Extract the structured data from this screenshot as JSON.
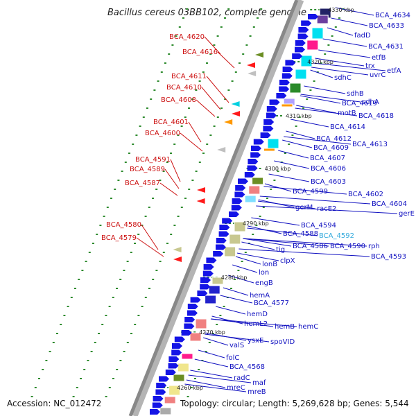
{
  "title": "Bacillus cereus 03BB102, complete genome",
  "accession": "Accession: NC_012472",
  "summary": "Topology: circular; Length: 5,269,628 bp; Genes: 5,544",
  "colors": {
    "forward_label": "#1010c0",
    "reverse_label": "#cc1111",
    "highlight_label": "#33aadd",
    "backbone": "#888888"
  },
  "kbp_labels": [
    "4330 kbp",
    "4320 kbp",
    "4310 kbp",
    "4300 kbp",
    "4290 kbp",
    "4280 kbp",
    "4270 kbp",
    "4260 kbp"
  ],
  "reverse_genes": [
    "BCA_4620",
    "BCA_4616",
    "BCA_4611",
    "BCA_4610",
    "BCA_4608",
    "BCA_4601",
    "BCA_4600",
    "BCA_4591",
    "BCA_4589",
    "BCA_4587",
    "BCA_4580",
    "BCA_4579"
  ],
  "forward_genes": [
    "BCA_4634",
    "BCA_4633",
    "fadD",
    "BCA_4631",
    "etfB",
    "trx",
    "uvrC",
    "etfA",
    "sdhC",
    "sdhB",
    "sdhA",
    "BCA_4619",
    "motB",
    "BCA_4618",
    "BCA_4614",
    "BCA_4612",
    "BCA_4613",
    "BCA_4609",
    "BCA_4607",
    "BCA_4606",
    "BCA_4603",
    "BCA_4599",
    "BCA_4602",
    "BCA_4604",
    "gerM",
    "racE2",
    "gerE",
    "BCA_4594",
    "BCA_4588",
    "BCA_4592",
    "BCA_4586",
    "BCA_4590",
    "rph",
    "tig",
    "BCA_4593",
    "clpX",
    "lonB",
    "lon",
    "engB",
    "hemA",
    "BCA_4577",
    "hemD",
    "hemL2",
    "hemB",
    "hemC",
    "ysxE",
    "spoVID",
    "valS",
    "folC",
    "BCA_4568",
    "radC",
    "maf",
    "mreC",
    "mreB"
  ]
}
